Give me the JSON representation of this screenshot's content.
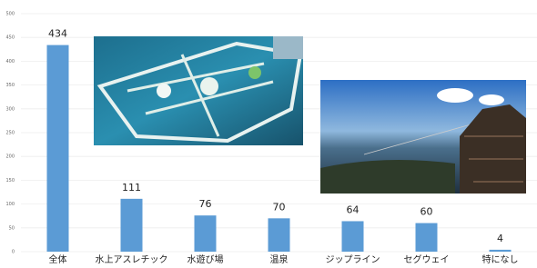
{
  "chart_data": {
    "type": "bar",
    "categories": [
      "全体",
      "水上アスレチック",
      "水遊び場",
      "温泉",
      "ジップライン",
      "セグウェイ",
      "特になし"
    ],
    "values": [
      434,
      111,
      76,
      70,
      64,
      60,
      4
    ],
    "color": "#5b9bd5",
    "ylim": [
      0,
      500
    ],
    "yticks": [
      0,
      50,
      100,
      150,
      200,
      250,
      300,
      350,
      400,
      450,
      500
    ],
    "grid": true
  }
}
